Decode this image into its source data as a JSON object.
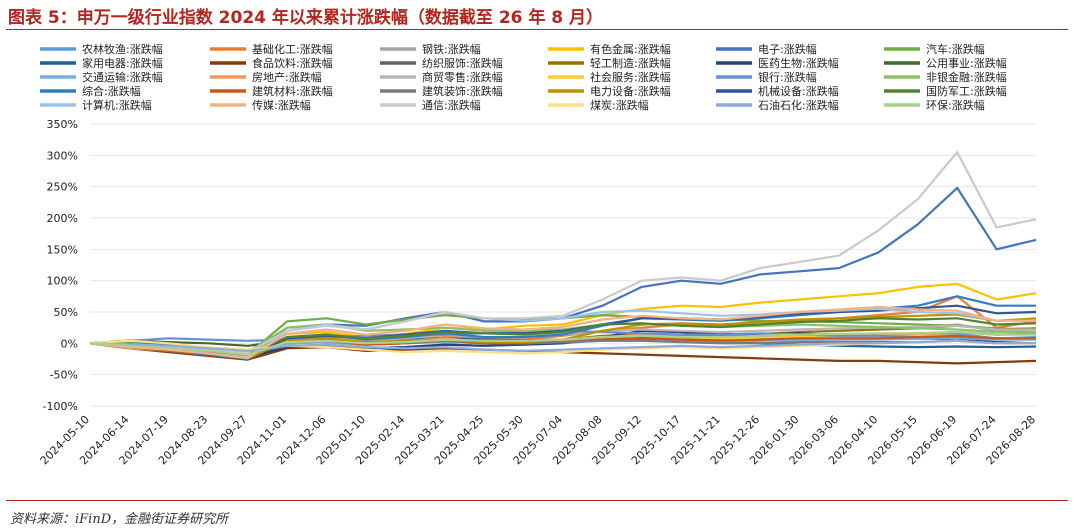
{
  "figure": {
    "title": "图表 5：申万一级行业指数 2024 年以来累计涨跌幅（数据截至 26 年 8 月）",
    "source": "资料来源：iFinD，金融街证券研究所"
  },
  "colors": {
    "title": "#b3261e",
    "rule": "#b3261e",
    "grid": "#e6e6e6"
  },
  "chart_data": {
    "type": "line",
    "ylim": [
      -100,
      350
    ],
    "y_ticks": [
      -100,
      -50,
      0,
      50,
      100,
      150,
      200,
      250,
      300,
      350
    ],
    "y_tick_labels": [
      "-100%",
      "-50%",
      "0%",
      "50%",
      "100%",
      "150%",
      "200%",
      "250%",
      "300%",
      "350%"
    ],
    "x_ticks": [
      "2024-05-10",
      "2024-06-14",
      "2024-07-19",
      "2024-08-23",
      "2024-09-27",
      "2024-11-01",
      "2024-12-06",
      "2025-01-10",
      "2025-02-14",
      "2025-03-21",
      "2025-04-25",
      "2025-05-30",
      "2025-07-04",
      "2025-08-08",
      "2025-09-12",
      "2025-10-17",
      "2025-11-21",
      "2025-12-26",
      "2026-01-30",
      "2026-03-06",
      "2026-04-10",
      "2026-05-15",
      "2026-06-19",
      "2026-07-24",
      "2026-08-28"
    ],
    "grid": "horizontal",
    "legend_position": "top",
    "series": [
      {
        "name": "农林牧渔:涨跌幅",
        "color": "#5b9bd5",
        "values": [
          0,
          -8,
          -12,
          -18,
          -20,
          -5,
          -3,
          -8,
          -6,
          -2,
          -4,
          -2,
          0,
          5,
          8,
          6,
          5,
          4,
          8,
          6,
          10,
          12,
          15,
          8,
          10
        ]
      },
      {
        "name": "基础化工:涨跌幅",
        "color": "#ed7d31",
        "values": [
          0,
          -5,
          -10,
          -15,
          -22,
          5,
          8,
          2,
          6,
          10,
          8,
          6,
          12,
          20,
          25,
          30,
          28,
          30,
          35,
          40,
          45,
          50,
          75,
          25,
          35
        ]
      },
      {
        "name": "钢铁:涨跌幅",
        "color": "#a5a5a5",
        "values": [
          0,
          -4,
          -8,
          -12,
          -18,
          0,
          2,
          -2,
          0,
          4,
          2,
          2,
          5,
          10,
          15,
          14,
          12,
          15,
          18,
          20,
          22,
          25,
          30,
          20,
          22
        ]
      },
      {
        "name": "有色金属:涨跌幅",
        "color": "#ffc000",
        "values": [
          0,
          5,
          0,
          -8,
          -15,
          15,
          18,
          10,
          15,
          25,
          22,
          28,
          30,
          45,
          55,
          60,
          58,
          65,
          70,
          75,
          80,
          90,
          95,
          70,
          80
        ]
      },
      {
        "name": "电子:涨跌幅",
        "color": "#4472c4",
        "values": [
          0,
          2,
          -3,
          -10,
          -18,
          25,
          30,
          28,
          40,
          50,
          35,
          35,
          40,
          60,
          90,
          100,
          95,
          110,
          115,
          120,
          145,
          190,
          248,
          150,
          165
        ]
      },
      {
        "name": "汽车:涨跌幅",
        "color": "#70ad47",
        "values": [
          0,
          0,
          -5,
          -10,
          -18,
          35,
          40,
          30,
          38,
          45,
          40,
          38,
          40,
          45,
          42,
          40,
          38,
          36,
          35,
          34,
          32,
          30,
          28,
          24,
          22
        ]
      },
      {
        "name": "家用电器:涨跌幅",
        "color": "#255e91",
        "values": [
          0,
          -5,
          -8,
          -12,
          -16,
          5,
          8,
          4,
          6,
          8,
          6,
          5,
          6,
          8,
          6,
          4,
          2,
          0,
          -2,
          -4,
          -5,
          -6,
          -5,
          -6,
          -5
        ]
      },
      {
        "name": "食品饮料:涨跌幅",
        "color": "#843c0c",
        "values": [
          0,
          -8,
          -14,
          -20,
          -26,
          -8,
          -6,
          -12,
          -10,
          -8,
          -10,
          -12,
          -14,
          -16,
          -18,
          -20,
          -22,
          -24,
          -26,
          -28,
          -28,
          -30,
          -32,
          -30,
          -28
        ]
      },
      {
        "name": "纺织服饰:涨跌幅",
        "color": "#636363",
        "values": [
          0,
          -5,
          -10,
          -15,
          -20,
          0,
          2,
          -2,
          0,
          4,
          2,
          2,
          4,
          8,
          10,
          10,
          8,
          10,
          12,
          14,
          15,
          16,
          18,
          14,
          15
        ]
      },
      {
        "name": "轻工制造:涨跌幅",
        "color": "#997300",
        "values": [
          0,
          -4,
          -9,
          -14,
          -20,
          2,
          4,
          0,
          2,
          6,
          4,
          4,
          6,
          12,
          14,
          14,
          12,
          15,
          18,
          20,
          22,
          24,
          28,
          22,
          24
        ]
      },
      {
        "name": "医药生物:涨跌幅",
        "color": "#264478",
        "values": [
          0,
          -6,
          -10,
          -16,
          -22,
          -6,
          -4,
          -8,
          -6,
          -2,
          -4,
          -2,
          0,
          10,
          20,
          18,
          15,
          14,
          16,
          12,
          10,
          8,
          6,
          2,
          0
        ]
      },
      {
        "name": "公用事业:涨跌幅",
        "color": "#43682b",
        "values": [
          0,
          4,
          2,
          0,
          -4,
          4,
          6,
          2,
          2,
          4,
          2,
          2,
          4,
          6,
          6,
          6,
          5,
          6,
          8,
          8,
          8,
          10,
          10,
          8,
          8
        ]
      },
      {
        "name": "交通运输:涨跌幅",
        "color": "#7cafdd",
        "values": [
          0,
          -2,
          -4,
          -8,
          -12,
          0,
          2,
          -2,
          0,
          2,
          0,
          0,
          2,
          4,
          4,
          4,
          3,
          4,
          5,
          6,
          6,
          7,
          8,
          6,
          6
        ]
      },
      {
        "name": "房地产:涨跌幅",
        "color": "#f1975a",
        "values": [
          0,
          -8,
          -12,
          -18,
          -24,
          5,
          10,
          0,
          4,
          8,
          2,
          0,
          4,
          10,
          14,
          10,
          8,
          10,
          12,
          14,
          15,
          14,
          12,
          8,
          8
        ]
      },
      {
        "name": "商贸零售:涨跌幅",
        "color": "#b7b7b7",
        "values": [
          0,
          -6,
          -10,
          -16,
          -22,
          8,
          12,
          4,
          8,
          14,
          10,
          10,
          14,
          20,
          22,
          20,
          18,
          20,
          22,
          24,
          25,
          26,
          28,
          22,
          22
        ]
      },
      {
        "name": "社会服务:涨跌幅",
        "color": "#ffcd33",
        "values": [
          0,
          -5,
          -9,
          -14,
          -20,
          2,
          4,
          0,
          2,
          6,
          4,
          4,
          6,
          10,
          12,
          10,
          8,
          8,
          10,
          10,
          10,
          12,
          12,
          8,
          8
        ]
      },
      {
        "name": "银行:涨跌幅",
        "color": "#698ed0",
        "values": [
          0,
          4,
          8,
          6,
          4,
          6,
          10,
          12,
          14,
          14,
          16,
          18,
          20,
          18,
          16,
          14,
          14,
          16,
          14,
          12,
          12,
          10,
          10,
          8,
          8
        ]
      },
      {
        "name": "非银金融:涨跌幅",
        "color": "#8cc168",
        "values": [
          0,
          -3,
          -6,
          -10,
          -14,
          25,
          30,
          20,
          22,
          25,
          20,
          20,
          22,
          30,
          32,
          28,
          26,
          28,
          30,
          28,
          26,
          24,
          22,
          18,
          18
        ]
      },
      {
        "name": "综合:涨跌幅",
        "color": "#327dc2",
        "values": [
          0,
          -6,
          -12,
          -18,
          -24,
          10,
          14,
          6,
          10,
          16,
          10,
          10,
          14,
          28,
          40,
          38,
          36,
          40,
          45,
          50,
          55,
          60,
          75,
          60,
          60
        ]
      },
      {
        "name": "建筑材料:涨跌幅",
        "color": "#c55a11",
        "values": [
          0,
          -6,
          -12,
          -16,
          -22,
          2,
          4,
          -2,
          0,
          4,
          0,
          0,
          2,
          6,
          8,
          6,
          4,
          6,
          8,
          8,
          8,
          10,
          12,
          8,
          8
        ]
      },
      {
        "name": "建筑装饰:涨跌幅",
        "color": "#7b7b7b",
        "values": [
          0,
          -4,
          -8,
          -12,
          -16,
          4,
          6,
          2,
          2,
          4,
          2,
          0,
          2,
          4,
          4,
          2,
          0,
          0,
          2,
          2,
          2,
          2,
          4,
          0,
          0
        ]
      },
      {
        "name": "电力设备:涨跌幅",
        "color": "#bf9000",
        "values": [
          0,
          -4,
          -10,
          -16,
          -24,
          4,
          8,
          2,
          4,
          6,
          2,
          2,
          6,
          20,
          30,
          32,
          30,
          34,
          38,
          40,
          42,
          44,
          46,
          36,
          40
        ]
      },
      {
        "name": "机械设备:涨跌幅",
        "color": "#2f5597",
        "values": [
          0,
          -3,
          -8,
          -14,
          -20,
          8,
          12,
          8,
          14,
          20,
          16,
          16,
          20,
          30,
          40,
          40,
          38,
          42,
          48,
          50,
          52,
          56,
          60,
          48,
          50
        ]
      },
      {
        "name": "国防军工:涨跌幅",
        "color": "#548235",
        "values": [
          0,
          -4,
          -8,
          -12,
          -18,
          10,
          14,
          8,
          12,
          18,
          16,
          14,
          18,
          30,
          32,
          28,
          26,
          30,
          34,
          36,
          40,
          38,
          40,
          30,
          32
        ]
      },
      {
        "name": "计算机:涨跌幅",
        "color": "#9dc3e6",
        "values": [
          0,
          -4,
          -10,
          -16,
          -24,
          20,
          30,
          22,
          35,
          50,
          40,
          36,
          40,
          50,
          52,
          48,
          44,
          46,
          50,
          52,
          55,
          50,
          48,
          36,
          36
        ]
      },
      {
        "name": "传媒:涨跌幅",
        "color": "#f4b183",
        "values": [
          0,
          -6,
          -10,
          -16,
          -22,
          15,
          22,
          14,
          20,
          30,
          24,
          22,
          26,
          38,
          44,
          40,
          38,
          44,
          50,
          54,
          58,
          54,
          52,
          36,
          36
        ]
      },
      {
        "name": "通信:涨跌幅",
        "color": "#c9c9c9",
        "values": [
          0,
          -2,
          -5,
          -10,
          -15,
          20,
          28,
          22,
          35,
          50,
          40,
          40,
          44,
          70,
          100,
          105,
          100,
          120,
          130,
          140,
          180,
          230,
          305,
          185,
          198
        ]
      },
      {
        "name": "煤炭:涨跌幅",
        "color": "#ffe082",
        "values": [
          0,
          4,
          0,
          -6,
          -10,
          -4,
          -6,
          -10,
          -14,
          -12,
          -14,
          -16,
          -14,
          -10,
          -8,
          -6,
          -8,
          -6,
          -4,
          -2,
          0,
          2,
          4,
          0,
          0
        ]
      },
      {
        "name": "石油石化:涨跌幅",
        "color": "#8faadc",
        "values": [
          0,
          -2,
          -4,
          -8,
          -12,
          -4,
          -2,
          -6,
          -8,
          -6,
          -10,
          -12,
          -10,
          -8,
          -6,
          -4,
          -6,
          -4,
          -2,
          0,
          0,
          2,
          4,
          0,
          0
        ]
      },
      {
        "name": "环保:涨跌幅",
        "color": "#a9d18e",
        "values": [
          0,
          -4,
          -8,
          -12,
          -18,
          2,
          4,
          0,
          2,
          6,
          4,
          4,
          6,
          10,
          12,
          10,
          10,
          12,
          14,
          15,
          16,
          16,
          18,
          14,
          14
        ]
      }
    ]
  }
}
